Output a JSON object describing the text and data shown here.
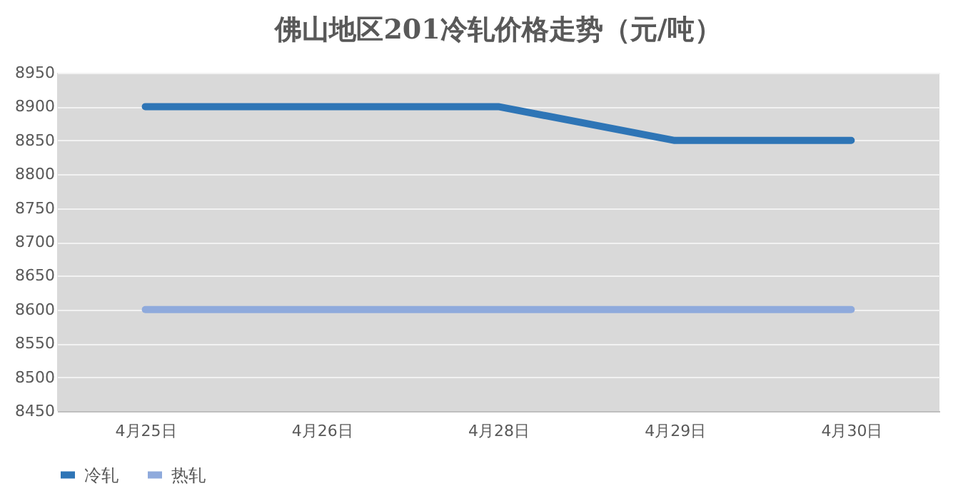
{
  "chart_data": {
    "type": "line",
    "title": "佛山地区201冷轧价格走势（元/吨）",
    "categories": [
      "4月25日",
      "4月26日",
      "4月28日",
      "4月29日",
      "4月30日"
    ],
    "series": [
      {
        "name": "冷轧",
        "color": "#2e75b6",
        "values": [
          8900,
          8900,
          8900,
          8850,
          8850
        ]
      },
      {
        "name": "热轧",
        "color": "#8faadc",
        "values": [
          8600,
          8600,
          8600,
          8600,
          8600
        ]
      }
    ],
    "ylim": [
      8450,
      8950
    ],
    "yticks": [
      8450,
      8500,
      8550,
      8600,
      8650,
      8700,
      8750,
      8800,
      8850,
      8900,
      8950
    ],
    "grid": "y",
    "legend": "bottom",
    "marker": "none",
    "line_style": "solid"
  }
}
